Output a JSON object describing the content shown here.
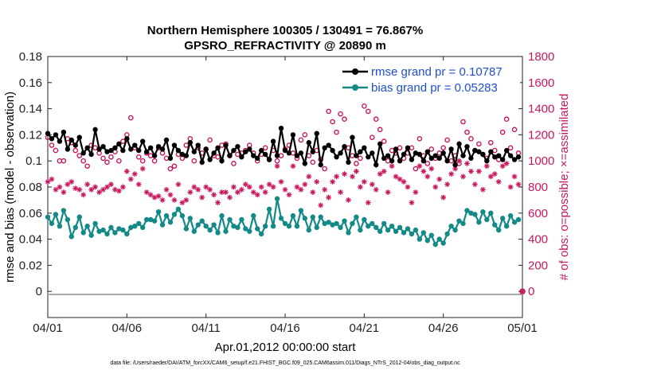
{
  "chart_data": {
    "type": "line",
    "title": "Northern Hemisphere 100305 / 130491 = 76.867%",
    "subtitle": "GPSRO_REFRACTIVITY @ 20890 m",
    "xlabel": "Apr.01,2012 00:00:00 start",
    "ylabel": "rmse and bias (model - observation)",
    "y2label": "# of obs: o=possible; ×=assimilated",
    "footnote": "data file: /Users/raeder/DAI/ATM_forcXX/CAM6_setup/f.e21.FHIST_BGC.f09_025.CAM6assim.011/Diags_NTrS_2012-04/obs_diag_output.nc",
    "x_ticks": [
      "04/01",
      "04/06",
      "04/11",
      "04/16",
      "04/21",
      "04/26",
      "05/01"
    ],
    "x_tick_days": [
      0,
      5,
      10,
      15,
      20,
      25,
      30
    ],
    "xlim_days": [
      0,
      30
    ],
    "ylim": [
      -0.02,
      0.18
    ],
    "y_ticks": [
      0,
      0.02,
      0.04,
      0.06,
      0.08,
      0.1,
      0.12,
      0.14,
      0.16,
      0.18
    ],
    "y_tick_labels": [
      "0",
      "0.02",
      "0.04",
      "0.06",
      "0.08",
      "0.1",
      "0.12",
      "0.14",
      "0.16",
      "0.18"
    ],
    "y2lim": [
      -200,
      1800
    ],
    "y2_ticks": [
      0,
      200,
      400,
      600,
      800,
      1000,
      1200,
      1400,
      1600,
      1800
    ],
    "y2_tick_labels": [
      "0",
      "200",
      "400",
      "600",
      "800",
      "1000",
      "1200",
      "1400",
      "1600",
      "1800"
    ],
    "legend_position": "top-right",
    "grid": false,
    "colors": {
      "rmse": "#000000",
      "bias": "#138a87",
      "obs": "#c8175e",
      "legend_text": "#1f4fd1",
      "zero_line": "#aaaaaa"
    },
    "series": [
      {
        "name": "rmse grand pr = 0.10787",
        "axis": "left",
        "color": "#000000",
        "x": [
          0,
          0.25,
          0.5,
          0.75,
          1,
          1.25,
          1.5,
          1.75,
          2,
          2.25,
          2.5,
          2.75,
          3,
          3.25,
          3.5,
          3.75,
          4,
          4.25,
          4.5,
          4.75,
          5,
          5.25,
          5.5,
          5.75,
          6,
          6.25,
          6.5,
          6.75,
          7,
          7.25,
          7.5,
          7.75,
          8,
          8.25,
          8.5,
          8.75,
          9,
          9.25,
          9.5,
          9.75,
          10,
          10.25,
          10.5,
          10.75,
          11,
          11.25,
          11.5,
          11.75,
          12,
          12.25,
          12.5,
          12.75,
          13,
          13.25,
          13.5,
          13.75,
          14,
          14.25,
          14.5,
          14.75,
          15,
          15.25,
          15.5,
          15.75,
          16,
          16.25,
          16.5,
          16.75,
          17,
          17.25,
          17.5,
          17.75,
          18,
          18.25,
          18.5,
          18.75,
          19,
          19.25,
          19.5,
          19.75,
          20,
          20.25,
          20.5,
          20.75,
          21,
          21.25,
          21.5,
          21.75,
          22,
          22.25,
          22.5,
          22.75,
          23,
          23.25,
          23.5,
          23.75,
          24,
          24.25,
          24.5,
          24.75,
          25,
          25.25,
          25.5,
          25.75,
          26,
          26.25,
          26.5,
          26.75,
          27,
          27.25,
          27.5,
          27.75,
          28,
          28.25,
          28.5,
          28.75,
          29,
          29.25,
          29.5,
          29.75
        ],
        "values": [
          0.121,
          0.117,
          0.12,
          0.115,
          0.122,
          0.109,
          0.116,
          0.112,
          0.118,
          0.106,
          0.11,
          0.105,
          0.124,
          0.109,
          0.111,
          0.107,
          0.108,
          0.11,
          0.113,
          0.108,
          0.117,
          0.109,
          0.112,
          0.108,
          0.115,
          0.107,
          0.11,
          0.104,
          0.111,
          0.109,
          0.116,
          0.102,
          0.112,
          0.108,
          0.105,
          0.104,
          0.114,
          0.107,
          0.112,
          0.099,
          0.109,
          0.101,
          0.106,
          0.11,
          0.1,
          0.112,
          0.104,
          0.108,
          0.111,
          0.103,
          0.107,
          0.109,
          0.104,
          0.102,
          0.108,
          0.105,
          0.101,
          0.115,
          0.104,
          0.125,
          0.108,
          0.106,
          0.12,
          0.104,
          0.106,
          0.098,
          0.114,
          0.107,
          0.121,
          0.097,
          0.11,
          0.112,
          0.108,
          0.103,
          0.106,
          0.111,
          0.099,
          0.118,
          0.104,
          0.107,
          0.11,
          0.103,
          0.106,
          0.097,
          0.113,
          0.102,
          0.104,
          0.1,
          0.109,
          0.1,
          0.105,
          0.11,
          0.101,
          0.106,
          0.105,
          0.1,
          0.107,
          0.102,
          0.104,
          0.102,
          0.106,
          0.1,
          0.109,
          0.097,
          0.113,
          0.104,
          0.111,
          0.102,
          0.108,
          0.107,
          0.105,
          0.1,
          0.107,
          0.103,
          0.104,
          0.101,
          0.108,
          0.104,
          0.101,
          0.103
        ]
      },
      {
        "name": "bias grand pr = 0.05283",
        "axis": "left",
        "color": "#138a87",
        "x": [
          0,
          0.25,
          0.5,
          0.75,
          1,
          1.25,
          1.5,
          1.75,
          2,
          2.25,
          2.5,
          2.75,
          3,
          3.25,
          3.5,
          3.75,
          4,
          4.25,
          4.5,
          4.75,
          5,
          5.25,
          5.5,
          5.75,
          6,
          6.25,
          6.5,
          6.75,
          7,
          7.25,
          7.5,
          7.75,
          8,
          8.25,
          8.5,
          8.75,
          9,
          9.25,
          9.5,
          9.75,
          10,
          10.25,
          10.5,
          10.75,
          11,
          11.25,
          11.5,
          11.75,
          12,
          12.25,
          12.5,
          12.75,
          13,
          13.25,
          13.5,
          13.75,
          14,
          14.25,
          14.5,
          14.75,
          15,
          15.25,
          15.5,
          15.75,
          16,
          16.25,
          16.5,
          16.75,
          17,
          17.25,
          17.5,
          17.75,
          18,
          18.25,
          18.5,
          18.75,
          19,
          19.25,
          19.5,
          19.75,
          20,
          20.25,
          20.5,
          20.75,
          21,
          21.25,
          21.5,
          21.75,
          22,
          22.25,
          22.5,
          22.75,
          23,
          23.25,
          23.5,
          23.75,
          24,
          24.25,
          24.5,
          24.75,
          25,
          25.25,
          25.5,
          25.75,
          26,
          26.25,
          26.5,
          26.75,
          27,
          27.25,
          27.5,
          27.75,
          28,
          28.25,
          28.5,
          28.75,
          29,
          29.25,
          29.5,
          29.75
        ],
        "values": [
          0.057,
          0.052,
          0.059,
          0.05,
          0.062,
          0.055,
          0.042,
          0.049,
          0.057,
          0.045,
          0.05,
          0.043,
          0.052,
          0.046,
          0.047,
          0.044,
          0.049,
          0.045,
          0.048,
          0.047,
          0.044,
          0.049,
          0.05,
          0.052,
          0.049,
          0.055,
          0.055,
          0.054,
          0.061,
          0.051,
          0.058,
          0.053,
          0.059,
          0.063,
          0.058,
          0.048,
          0.056,
          0.046,
          0.051,
          0.054,
          0.05,
          0.047,
          0.051,
          0.045,
          0.058,
          0.046,
          0.055,
          0.05,
          0.049,
          0.055,
          0.048,
          0.046,
          0.058,
          0.048,
          0.044,
          0.05,
          0.063,
          0.05,
          0.071,
          0.056,
          0.052,
          0.05,
          0.058,
          0.05,
          0.062,
          0.056,
          0.047,
          0.057,
          0.049,
          0.057,
          0.052,
          0.053,
          0.051,
          0.052,
          0.049,
          0.054,
          0.045,
          0.052,
          0.057,
          0.047,
          0.055,
          0.05,
          0.052,
          0.049,
          0.046,
          0.052,
          0.047,
          0.05,
          0.046,
          0.049,
          0.045,
          0.048,
          0.044,
          0.047,
          0.04,
          0.045,
          0.039,
          0.043,
          0.036,
          0.04,
          0.037,
          0.044,
          0.05,
          0.047,
          0.054,
          0.052,
          0.062,
          0.06,
          0.059,
          0.053,
          0.061,
          0.055,
          0.06,
          0.051,
          0.047,
          0.056,
          0.05,
          0.058,
          0.053,
          0.055
        ]
      },
      {
        "name": "possible",
        "axis": "right",
        "marker": "circle",
        "color": "#c8175e",
        "x": [
          0,
          0.25,
          0.5,
          0.75,
          1,
          1.25,
          1.5,
          1.75,
          2,
          2.25,
          2.5,
          2.75,
          3,
          3.25,
          3.5,
          3.75,
          4,
          4.25,
          4.5,
          4.75,
          5,
          5.25,
          5.5,
          5.75,
          6,
          6.25,
          6.5,
          6.75,
          7,
          7.25,
          7.5,
          7.75,
          8,
          8.25,
          8.5,
          8.75,
          9,
          9.25,
          9.5,
          9.75,
          10,
          10.25,
          10.5,
          10.75,
          11,
          11.25,
          11.5,
          11.75,
          12,
          12.25,
          12.5,
          12.75,
          13,
          13.25,
          13.5,
          13.75,
          14,
          14.25,
          14.5,
          14.75,
          15,
          15.25,
          15.5,
          15.75,
          16,
          16.25,
          16.5,
          16.75,
          17,
          17.25,
          17.5,
          17.75,
          18,
          18.25,
          18.5,
          18.75,
          19,
          19.25,
          19.5,
          19.75,
          20,
          20.25,
          20.5,
          20.75,
          21,
          21.25,
          21.5,
          21.75,
          22,
          22.25,
          22.5,
          22.75,
          23,
          23.25,
          23.5,
          23.75,
          24,
          24.25,
          24.5,
          24.75,
          25,
          25.25,
          25.5,
          25.75,
          26,
          26.25,
          26.5,
          26.75,
          27,
          27.25,
          27.5,
          27.75,
          28,
          28.25,
          28.5,
          28.75,
          29,
          29.25,
          29.5,
          29.75
        ],
        "values": [
          1180,
          1120,
          1080,
          1000,
          1000,
          1170,
          1140,
          1080,
          1040,
          1000,
          960,
          1120,
          1100,
          1060,
          1020,
          990,
          1030,
          1070,
          1000,
          1150,
          1200,
          1330,
          1100,
          1030,
          1000,
          1060,
          1040,
          1000,
          1100,
          1060,
          1020,
          940,
          960,
          1050,
          1020,
          1120,
          1170,
          1000,
          1100,
          1060,
          1090,
          1160,
          1040,
          1030,
          1120,
          1130,
          1040,
          980,
          1050,
          1060,
          1080,
          1120,
          1060,
          1000,
          1050,
          1100,
          1010,
          1080,
          1000,
          1040,
          1090,
          1120,
          1060,
          1020,
          1160,
          1200,
          1040,
          990,
          1080,
          1010,
          940,
          1380,
          1300,
          1220,
          1360,
          1320,
          1100,
          1040,
          980,
          1020,
          1420,
          1380,
          1180,
          1320,
          1240,
          1150,
          1000,
          1080,
          1060,
          1100,
          1020,
          1060,
          1100,
          940,
          1170,
          1040,
          980,
          1090,
          1020,
          1060,
          1100,
          1160,
          1000,
          1040,
          980,
          1300,
          1220,
          1170,
          1080,
          1130,
          1050,
          1020,
          1140,
          1080,
          1010,
          1220,
          1320,
          1100,
          1240,
          1060
        ]
      },
      {
        "name": "assimilated",
        "axis": "right",
        "marker": "asterisk",
        "color": "#c8175e",
        "x": [
          0,
          0.25,
          0.5,
          0.75,
          1,
          1.25,
          1.5,
          1.75,
          2,
          2.25,
          2.5,
          2.75,
          3,
          3.25,
          3.5,
          3.75,
          4,
          4.25,
          4.5,
          4.75,
          5,
          5.25,
          5.5,
          5.75,
          6,
          6.25,
          6.5,
          6.75,
          7,
          7.25,
          7.5,
          7.75,
          8,
          8.25,
          8.5,
          8.75,
          9,
          9.25,
          9.5,
          9.75,
          10,
          10.25,
          10.5,
          10.75,
          11,
          11.25,
          11.5,
          11.75,
          12,
          12.25,
          12.5,
          12.75,
          13,
          13.25,
          13.5,
          13.75,
          14,
          14.25,
          14.5,
          14.75,
          15,
          15.25,
          15.5,
          15.75,
          16,
          16.25,
          16.5,
          16.75,
          17,
          17.25,
          17.5,
          17.75,
          18,
          18.25,
          18.5,
          18.75,
          19,
          19.25,
          19.5,
          19.75,
          20,
          20.25,
          20.5,
          20.75,
          21,
          21.25,
          21.5,
          21.75,
          22,
          22.25,
          22.5,
          22.75,
          23,
          23.25,
          23.5,
          23.75,
          24,
          24.25,
          24.5,
          24.75,
          25,
          25.25,
          25.5,
          25.75,
          26,
          26.25,
          26.5,
          26.75,
          27,
          27.25,
          27.5,
          27.75,
          28,
          28.25,
          28.5,
          28.75,
          29,
          29.25,
          29.5,
          29.75
        ],
        "values": [
          840,
          860,
          780,
          800,
          760,
          820,
          840,
          790,
          780,
          740,
          820,
          780,
          800,
          760,
          780,
          800,
          820,
          780,
          770,
          800,
          920,
          860,
          900,
          820,
          940,
          760,
          740,
          720,
          730,
          700,
          780,
          740,
          700,
          820,
          680,
          700,
          760,
          800,
          780,
          720,
          800,
          780,
          740,
          680,
          760,
          760,
          720,
          800,
          760,
          780,
          820,
          800,
          760,
          740,
          800,
          760,
          820,
          800,
          960,
          840,
          780,
          740,
          960,
          800,
          780,
          820,
          880,
          760,
          840,
          660,
          780,
          720,
          840,
          880,
          760,
          900,
          700,
          880,
          920,
          800,
          840,
          680,
          820,
          780,
          900,
          920,
          760,
          960,
          880,
          860,
          840,
          800,
          680,
          760,
          960,
          920,
          880,
          940,
          800,
          860,
          720,
          820,
          900,
          940,
          1000,
          880,
          980,
          920,
          820,
          920,
          780,
          960,
          880,
          900,
          840,
          960,
          980,
          800,
          880,
          820
        ]
      }
    ],
    "zero_marker": {
      "x": 30,
      "y": 0
    }
  }
}
